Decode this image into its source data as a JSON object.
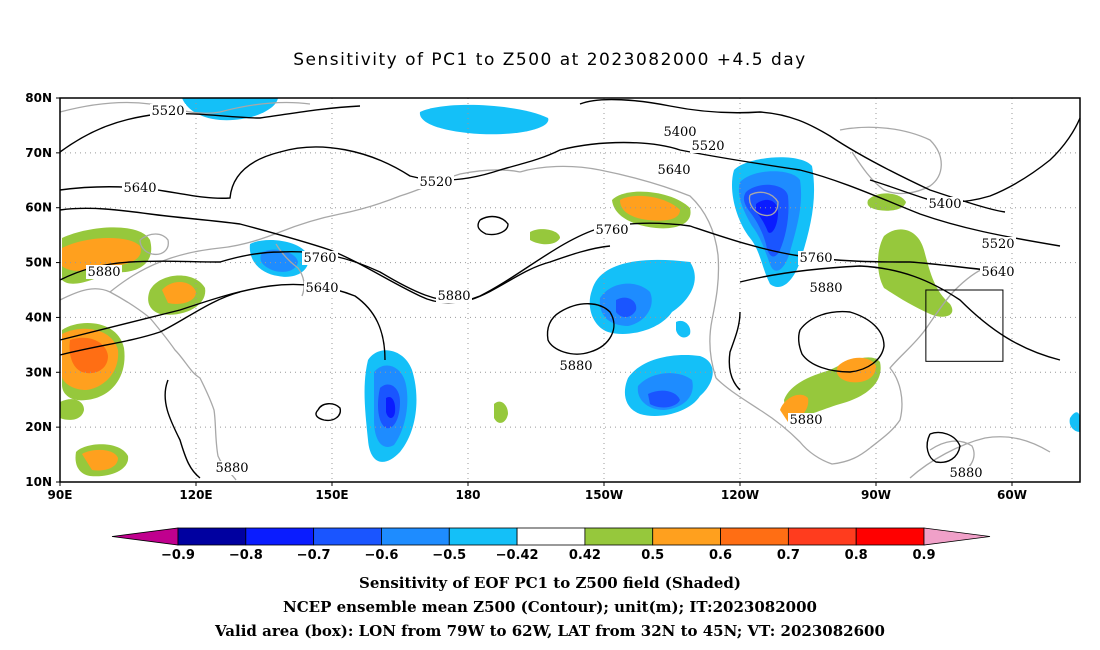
{
  "title": "Sensitivity of PC1 to Z500 at 2023082000 +4.5 day",
  "map": {
    "lat_labels": [
      "80N",
      "70N",
      "60N",
      "50N",
      "40N",
      "30N",
      "20N",
      "10N"
    ],
    "lon_labels": [
      "90E",
      "120E",
      "150E",
      "180",
      "150W",
      "120W",
      "90W",
      "60W"
    ],
    "valid_box": {
      "lon_min": -79,
      "lon_max": -62,
      "lat_min": 32,
      "lat_max": 45
    },
    "contour_labels": [
      "5520",
      "5400",
      "5520",
      "5520",
      "5640",
      "5640",
      "5760",
      "5760",
      "5880",
      "5880",
      "5640",
      "5400",
      "5520",
      "5640",
      "5760",
      "5880",
      "5880",
      "5880",
      "5880"
    ]
  },
  "colorbar": {
    "labels": [
      "-0.9",
      "-0.8",
      "-0.7",
      "-0.6",
      "-0.5",
      "-0.42",
      "0.42",
      "0.5",
      "0.6",
      "0.7",
      "0.8",
      "0.9"
    ],
    "colors": [
      "#c0008e",
      "#0000a0",
      "#0a1cff",
      "#1a55ff",
      "#1e8cff",
      "#14c0f8",
      "#ffffff",
      "#96c83c",
      "#ffa01e",
      "#ff6e14",
      "#ff3c1e",
      "#ff0000",
      "#f0a0c8"
    ]
  },
  "captions": {
    "line1": "Sensitivity of EOF PC1 to Z500 field (Shaded)",
    "line2": "NCEP ensemble mean Z500 (Contour); unit(m); IT:2023082000",
    "line3": "Valid area (box): LON from 79W to 62W, LAT from 32N to 45N; VT: 2023082600"
  }
}
